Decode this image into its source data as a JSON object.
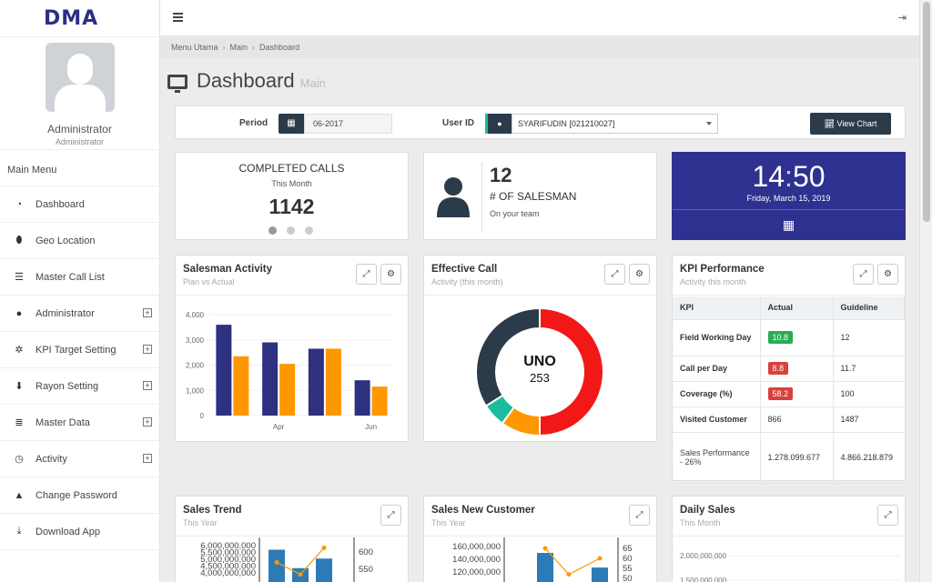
{
  "app": {
    "logo_text": "DMA"
  },
  "profile": {
    "name": "Administrator",
    "role": "Administrator"
  },
  "sidebar": {
    "title": "Main Menu",
    "items": [
      {
        "label": "Dashboard",
        "icon": "dashboard-icon",
        "glyph": "◔",
        "expandable": false
      },
      {
        "label": "Geo Location",
        "icon": "map-marker-icon",
        "glyph": "⬮",
        "expandable": false
      },
      {
        "label": "Master Call List",
        "icon": "list-icon",
        "glyph": "☰",
        "expandable": false
      },
      {
        "label": "Administrator",
        "icon": "user-icon",
        "glyph": "●",
        "expandable": true
      },
      {
        "label": "KPI Target Setting",
        "icon": "cogs-icon",
        "glyph": "✲",
        "expandable": true
      },
      {
        "label": "Rayon Setting",
        "icon": "pin-icon",
        "glyph": "⬇",
        "expandable": true
      },
      {
        "label": "Master Data",
        "icon": "database-icon",
        "glyph": "≣",
        "expandable": true
      },
      {
        "label": "Activity",
        "icon": "clock-icon",
        "glyph": "◷",
        "expandable": true
      },
      {
        "label": "Change Password",
        "icon": "lock-icon",
        "glyph": "▲",
        "expandable": false
      },
      {
        "label": "Download App",
        "icon": "download-icon",
        "glyph": "⤓",
        "expandable": false
      }
    ]
  },
  "breadcrumb": [
    "Menu Utama",
    "Main",
    "Dashboard"
  ],
  "page": {
    "title": "Dashboard",
    "subtitle": "Main"
  },
  "filter": {
    "period_label": "Period",
    "period_value": "06-2017",
    "user_label": "User ID",
    "user_value": "SYARIFUDIN [021210027]",
    "view_chart_label": "View Chart"
  },
  "stats": {
    "calls": {
      "title": "COMPLETED CALLS",
      "period": "This Month",
      "value": "1142"
    },
    "salesman": {
      "value": "12",
      "label": "# OF SALESMAN",
      "sub": "On your team"
    },
    "clock": {
      "hours": "14",
      "minutes": "50",
      "date": "Friday, March 15, 2019"
    }
  },
  "panels": {
    "salesman_activity": {
      "title": "Salesman Activity",
      "subtitle": "Plan vs Actual"
    },
    "effective_call": {
      "title": "Effective Call",
      "subtitle": "Activity (this month)",
      "center_title": "UNO",
      "center_value": "253"
    },
    "kpi": {
      "title": "KPI Performance",
      "subtitle": "Activity this month"
    },
    "sales_trend": {
      "title": "Sales Trend",
      "subtitle": "This Year"
    },
    "sales_new_customer": {
      "title": "Sales New Customer",
      "subtitle": "This Year"
    },
    "daily_sales": {
      "title": "Daily Sales",
      "subtitle": "This Month"
    }
  },
  "kpi_table": {
    "headers": [
      "KPI",
      "Actual",
      "Guideline"
    ],
    "rows": [
      {
        "name": "Field Working Day",
        "actual": "10.8",
        "status": "green",
        "guideline": "12"
      },
      {
        "name": "Call per Day",
        "actual": "8.8",
        "status": "red",
        "guideline": "11.7"
      },
      {
        "name": "Coverage (%)",
        "actual": "58.2",
        "status": "red",
        "guideline": "100"
      },
      {
        "name": "Visited Customer",
        "actual": "866",
        "status": "none",
        "guideline": "1487"
      },
      {
        "name": "Sales Performance - 26%",
        "actual": "1.278.099.677",
        "status": "none",
        "guideline": "4.866.218.879"
      }
    ]
  },
  "colors": {
    "primary": "#2e3190",
    "dark": "#2c3b4a",
    "plan": "#2e3080",
    "actual": "#ff9800",
    "red": "#f21818",
    "teal": "#1abc9c",
    "green": "#2aac55"
  },
  "chart_data": [
    {
      "type": "bar",
      "title": "Salesman Activity",
      "categories": [
        "",
        "Apr",
        "",
        "Jun"
      ],
      "series": [
        {
          "values": [
            3600,
            2900,
            2650,
            1400
          ]
        },
        {
          "values": [
            2350,
            2050,
            2650,
            1150
          ]
        }
      ],
      "ylim": [
        0,
        4000
      ],
      "yticks": [
        "0",
        "1,000",
        "2,000",
        "3,000",
        "4,000"
      ]
    },
    {
      "type": "pie",
      "title": "Effective Call",
      "values": [
        50,
        10,
        6,
        34
      ],
      "colors": [
        "#f21818",
        "#ff9800",
        "#1abc9c",
        "#2c3b4a"
      ]
    },
    {
      "type": "bar",
      "title": "Sales Trend",
      "categories": [
        "",
        "",
        ""
      ],
      "series": [
        {
          "values": [
            5700000000,
            4350000000,
            5050000000
          ]
        },
        {
          "values": [
            570,
            535,
            612
          ]
        }
      ],
      "yticks": [
        "4,000,000,000",
        "4,500,000,000",
        "5,000,000,000",
        "5,500,000,000",
        "6,000,000,000"
      ],
      "y2ticks": [
        "550",
        "600"
      ]
    },
    {
      "type": "bar",
      "title": "Sales New Customer",
      "categories": [
        "",
        "",
        ""
      ],
      "series": [
        {
          "values": [
            150000000,
            0,
            127000000
          ]
        },
        {
          "values": [
            65,
            52,
            60
          ]
        }
      ],
      "yticks": [
        "120,000,000",
        "140,000,000",
        "160,000,000"
      ],
      "y2ticks": [
        "50",
        "55",
        "60",
        "65"
      ]
    },
    {
      "type": "line",
      "title": "Daily Sales",
      "yticks": [
        "1,500,000,000",
        "2,000,000,000"
      ]
    }
  ]
}
